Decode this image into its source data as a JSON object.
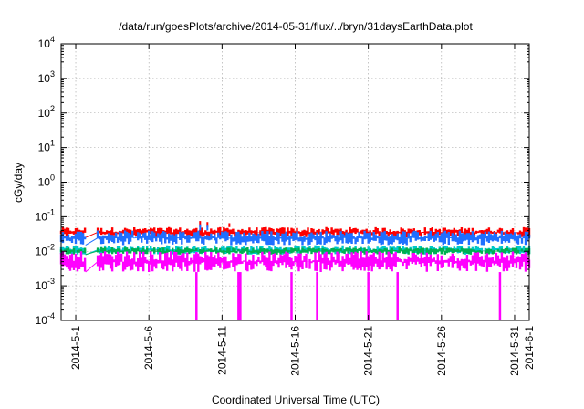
{
  "chart_data": {
    "type": "line",
    "title": "/data/run/goesPlots/archive/2014-05-31/flux/../bryn/31daysEarthData.plot",
    "xlabel": "Coordinated Universal Time (UTC)",
    "ylabel": "cGy/day",
    "y_scale": "log",
    "ylim": [
      0.0001,
      10000
    ],
    "xlim": [
      "2014-04-30",
      "2014-06-01"
    ],
    "grid": true,
    "legend": "none",
    "x_ticks": [
      "2014-5-1",
      "2014-5-6",
      "2014-5-11",
      "2014-5-16",
      "2014-5-21",
      "2014-5-26",
      "2014-5-31",
      "2014-6-1"
    ],
    "y_ticks": [
      {
        "value": 0.0001,
        "mantissa": "10",
        "exp": "-4"
      },
      {
        "value": 0.001,
        "mantissa": "10",
        "exp": "-3"
      },
      {
        "value": 0.01,
        "mantissa": "10",
        "exp": "-2"
      },
      {
        "value": 0.1,
        "mantissa": "10",
        "exp": "-1"
      },
      {
        "value": 1,
        "mantissa": "10",
        "exp": "0"
      },
      {
        "value": 10,
        "mantissa": "10",
        "exp": "1"
      },
      {
        "value": 100,
        "mantissa": "10",
        "exp": "2"
      },
      {
        "value": 1000,
        "mantissa": "10",
        "exp": "3"
      },
      {
        "value": 10000,
        "mantissa": "10",
        "exp": "4"
      }
    ],
    "data_gap": [
      "2014-05-01T16:00",
      "2014-05-02T12:00"
    ],
    "series": [
      {
        "color": "#ff0000",
        "band": [
          0.025,
          0.05
        ],
        "peaks": [
          [
            "2014-05-09T12:00",
            0.075
          ],
          [
            "2014-05-10T00:00",
            0.07
          ],
          [
            "2014-05-11T12:00",
            0.065
          ]
        ]
      },
      {
        "color": "#1f6fff",
        "band": [
          0.015,
          0.04
        ],
        "peaks": [
          [
            "2014-05-09T12:00",
            0.06
          ],
          [
            "2014-05-10T00:00",
            0.055
          ]
        ]
      },
      {
        "color": "#00c8c8",
        "band": [
          0.008,
          0.015
        ],
        "peaks": []
      },
      {
        "color": "#00b050",
        "band": [
          0.008,
          0.013
        ],
        "peaks": []
      },
      {
        "color": "#ff00ff",
        "band": [
          0.0025,
          0.01
        ],
        "peaks": [],
        "dips": [
          [
            "2014-05-09T06:00",
            0.0001
          ],
          [
            "2014-05-12T03:00",
            0.0001
          ],
          [
            "2014-05-12T06:00",
            0.0001
          ],
          [
            "2014-05-15T18:00",
            0.0001
          ],
          [
            "2014-05-17T12:00",
            0.0001
          ],
          [
            "2014-05-21T00:00",
            0.0001
          ],
          [
            "2014-05-23T00:00",
            0.0001
          ],
          [
            "2014-05-30T00:00",
            0.0001
          ]
        ]
      }
    ]
  }
}
